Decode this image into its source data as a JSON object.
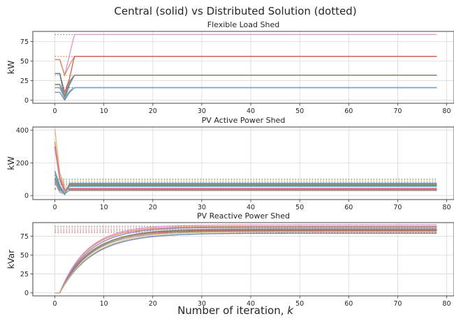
{
  "figure": {
    "title": "Central (solid) vs Distributed Solution (dotted)",
    "xlabel_text": "Number of iteration, ",
    "xlabel_var": "k"
  },
  "colors": [
    "#4c72b0",
    "#dd8452",
    "#55a868",
    "#c44e52",
    "#8172b3",
    "#937860",
    "#da8bc3",
    "#8c8c8c",
    "#ccb974",
    "#64b5cd"
  ],
  "chart_data": [
    {
      "type": "line",
      "title": "Flexible Load Shed",
      "ylabel": "kW",
      "xlim": [
        -4.5,
        81.5
      ],
      "ylim": [
        -4,
        88
      ],
      "xticks": [
        0,
        10,
        20,
        30,
        40,
        50,
        60,
        70,
        80
      ],
      "yticks": [
        0,
        25,
        50,
        75
      ],
      "grid": true,
      "x_start": 0,
      "x_end": 78,
      "solid_series": [
        {
          "color": "#da8bc3",
          "values": [
            52,
            52,
            32,
            58,
            84,
            84
          ],
          "final": 84
        },
        {
          "color": "#dd8452",
          "values": [
            52,
            52,
            32,
            45,
            56,
            56
          ],
          "final": 56
        },
        {
          "color": "#c44e52",
          "values": [
            34,
            34,
            10,
            28,
            56,
            56
          ],
          "final": 56
        },
        {
          "color": "#4c72b0",
          "values": [
            34,
            34,
            2,
            20,
            32,
            32
          ],
          "final": 32
        },
        {
          "color": "#55a868",
          "values": [
            20,
            20,
            4,
            22,
            32,
            32
          ],
          "final": 32
        },
        {
          "color": "#937860",
          "values": [
            20,
            20,
            6,
            24,
            32,
            32
          ],
          "final": 32
        },
        {
          "color": "#8172b3",
          "values": [
            10,
            10,
            0,
            10,
            16,
            16
          ],
          "final": 16
        },
        {
          "color": "#8c8c8c",
          "values": [
            16,
            16,
            2,
            10,
            16,
            16
          ],
          "final": 16
        },
        {
          "color": "#64b5cd",
          "values": [
            16,
            16,
            3,
            12,
            16,
            16
          ],
          "final": 16
        }
      ],
      "dotted_levels": [
        {
          "color": "#8c8c8c",
          "value": 84,
          "x_end": 4
        },
        {
          "color": "#dd8452",
          "value": 56,
          "x_end": 4
        },
        {
          "color": "#ccb974",
          "value": 32,
          "x_end": 4
        },
        {
          "color": "#4c72b0",
          "value": 16,
          "x_end": 4
        }
      ]
    },
    {
      "type": "line",
      "title": "PV Active Power Shed",
      "ylabel": "kW",
      "xlim": [
        -4.5,
        81.5
      ],
      "ylim": [
        -25,
        420
      ],
      "xticks": [
        0,
        10,
        20,
        30,
        40,
        50,
        60,
        70,
        80
      ],
      "yticks": [
        0,
        200,
        400
      ],
      "grid": true,
      "x_start": 0,
      "x_end": 78,
      "solid_series": [
        {
          "color": "#ccb974",
          "values": [
            410,
            140,
            60,
            30
          ],
          "final": 30
        },
        {
          "color": "#dd8452",
          "values": [
            330,
            120,
            40,
            35
          ],
          "final": 35
        },
        {
          "color": "#c44e52",
          "values": [
            300,
            100,
            30,
            40
          ],
          "final": 40
        },
        {
          "color": "#da8bc3",
          "values": [
            290,
            90,
            20,
            45
          ],
          "final": 45
        },
        {
          "color": "#4c72b0",
          "values": [
            150,
            60,
            10,
            60
          ],
          "final": 60
        },
        {
          "color": "#55a868",
          "values": [
            130,
            50,
            5,
            70
          ],
          "final": 70
        },
        {
          "color": "#8172b3",
          "values": [
            110,
            40,
            8,
            75
          ],
          "final": 75
        },
        {
          "color": "#937860",
          "values": [
            100,
            35,
            12,
            65
          ],
          "final": 65
        },
        {
          "color": "#64b5cd",
          "values": [
            90,
            30,
            15,
            55
          ],
          "final": 55
        },
        {
          "color": "#8c8c8c",
          "values": [
            80,
            20,
            10,
            32
          ],
          "final": 32
        }
      ],
      "dotted_levels": [
        {
          "color": "#55a868",
          "value": 100
        },
        {
          "color": "#ccb974",
          "value": 90
        },
        {
          "color": "#64b5cd",
          "value": 82
        },
        {
          "color": "#da8bc3",
          "value": 72
        },
        {
          "color": "#8c8c8c",
          "value": 65
        },
        {
          "color": "#dd8452",
          "value": 45
        },
        {
          "color": "#c44e52",
          "value": 38
        }
      ]
    },
    {
      "type": "line",
      "title": "PV Reactive Power Shed",
      "ylabel": "kVar",
      "xlim": [
        -4.5,
        81.5
      ],
      "ylim": [
        -4,
        93
      ],
      "xticks": [
        0,
        10,
        20,
        30,
        40,
        50,
        60,
        70,
        80
      ],
      "yticks": [
        0,
        25,
        50,
        75
      ],
      "grid": true,
      "x_start": 0,
      "x_end": 78,
      "curves": [
        {
          "color": "#4c72b0",
          "asymptote": 79,
          "rate": 0.15
        },
        {
          "color": "#dd8452",
          "asymptote": 88,
          "rate": 0.18
        },
        {
          "color": "#55a868",
          "asymptote": 84,
          "rate": 0.16
        },
        {
          "color": "#c44e52",
          "asymptote": 83,
          "rate": 0.17
        },
        {
          "color": "#8172b3",
          "asymptote": 87,
          "rate": 0.17
        },
        {
          "color": "#937860",
          "asymptote": 82,
          "rate": 0.16
        },
        {
          "color": "#da8bc3",
          "asymptote": 90,
          "rate": 0.18
        },
        {
          "color": "#8c8c8c",
          "asymptote": 85,
          "rate": 0.16
        },
        {
          "color": "#ccb974",
          "asymptote": 81,
          "rate": 0.15
        }
      ],
      "dotted_band": {
        "values": [
          80,
          82,
          84,
          86,
          88
        ],
        "colors": [
          "#c44e52",
          "#8c8c8c",
          "#dd8452",
          "#da8bc3",
          "#937860"
        ]
      }
    }
  ]
}
